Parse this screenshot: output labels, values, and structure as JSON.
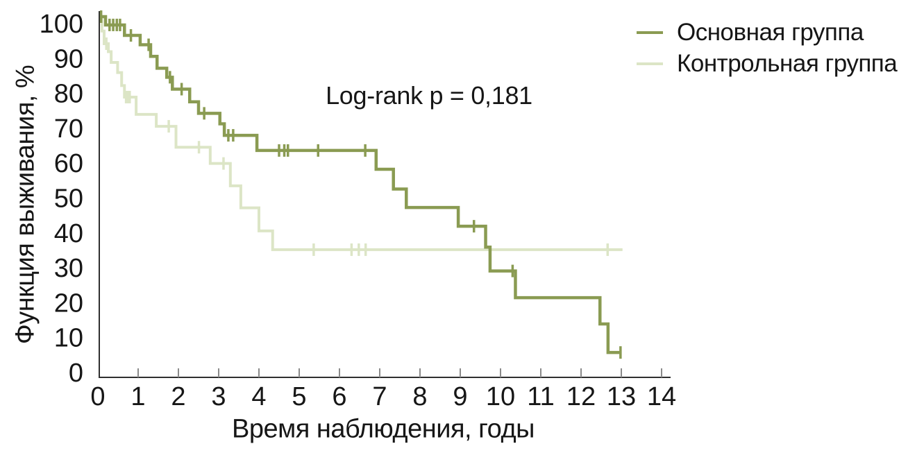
{
  "chart_data": {
    "type": "line",
    "subtype": "kaplan-meier-step-survival",
    "title": "",
    "xlabel": "Время наблюдения, годы",
    "ylabel": "Функция выживания, %",
    "annotation": "Log-rank p = 0,181",
    "xlim": [
      0,
      14
    ],
    "ylim": [
      0,
      100
    ],
    "xticks": [
      0,
      1,
      2,
      3,
      4,
      5,
      6,
      7,
      8,
      9,
      10,
      11,
      12,
      13,
      14
    ],
    "yticks": [
      0,
      10,
      20,
      30,
      40,
      50,
      60,
      70,
      80,
      90,
      100
    ],
    "grid": false,
    "legend_position": "top-right",
    "axis_color": "#2f2f2f",
    "tick_color": "#8a8a8a",
    "text_color": "#161616",
    "series": [
      {
        "name": "Основная группа",
        "color": "#8a9b52",
        "points": [
          [
            0,
            100
          ],
          [
            0.19,
            97.7
          ],
          [
            0.66,
            94.8
          ],
          [
            1.05,
            92.2
          ],
          [
            1.31,
            89.0
          ],
          [
            1.47,
            85.7
          ],
          [
            1.71,
            83.2
          ],
          [
            1.85,
            79.9
          ],
          [
            2.28,
            76.4
          ],
          [
            2.5,
            73.2
          ],
          [
            3.03,
            70.3
          ],
          [
            3.14,
            67.1
          ],
          [
            3.95,
            62.9
          ],
          [
            6.91,
            57.7
          ],
          [
            7.34,
            52.2
          ],
          [
            7.66,
            47.1
          ],
          [
            8.95,
            41.9
          ],
          [
            9.63,
            36.1
          ],
          [
            9.74,
            29.5
          ],
          [
            10.37,
            22.1
          ],
          [
            12.47,
            14.8
          ],
          [
            12.67,
            6.9
          ]
        ],
        "t_end": 13.0,
        "censor_marks": [
          [
            0.08,
            100
          ],
          [
            0.29,
            97.7
          ],
          [
            0.38,
            97.7
          ],
          [
            0.47,
            97.7
          ],
          [
            0.55,
            97.7
          ],
          [
            0.82,
            94.8
          ],
          [
            1.26,
            92.2
          ],
          [
            1.79,
            83.2
          ],
          [
            2.08,
            79.9
          ],
          [
            2.64,
            73.2
          ],
          [
            3.24,
            67.1
          ],
          [
            3.36,
            67.1
          ],
          [
            4.5,
            62.9
          ],
          [
            4.63,
            62.9
          ],
          [
            4.72,
            62.9
          ],
          [
            5.47,
            62.9
          ],
          [
            6.64,
            62.9
          ],
          [
            9.34,
            41.9
          ],
          [
            10.3,
            29.5
          ],
          [
            12.98,
            6.9
          ]
        ]
      },
      {
        "name": "Контрольная группа",
        "color": "#dce5c6",
        "points": [
          [
            0,
            100
          ],
          [
            0.1,
            96.0
          ],
          [
            0.155,
            92.5
          ],
          [
            0.26,
            90.3
          ],
          [
            0.33,
            87.3
          ],
          [
            0.49,
            84.5
          ],
          [
            0.59,
            80.9
          ],
          [
            0.66,
            77.7
          ],
          [
            0.95,
            72.9
          ],
          [
            1.45,
            69.6
          ],
          [
            1.94,
            63.8
          ],
          [
            2.79,
            59.3
          ],
          [
            3.29,
            53.1
          ],
          [
            3.55,
            47.0
          ],
          [
            4.0,
            40.6
          ],
          [
            4.34,
            35.4
          ]
        ],
        "t_end": 13.03,
        "censor_marks": [
          [
            0.21,
            92.5
          ],
          [
            0.7,
            77.7
          ],
          [
            0.75,
            77.7
          ],
          [
            0.79,
            77.7
          ],
          [
            1.76,
            69.6
          ],
          [
            2.51,
            63.8
          ],
          [
            3.12,
            59.3
          ],
          [
            5.36,
            35.4
          ],
          [
            6.3,
            35.4
          ],
          [
            6.48,
            35.4
          ],
          [
            6.65,
            35.4
          ],
          [
            12.66,
            35.4
          ]
        ]
      }
    ]
  }
}
